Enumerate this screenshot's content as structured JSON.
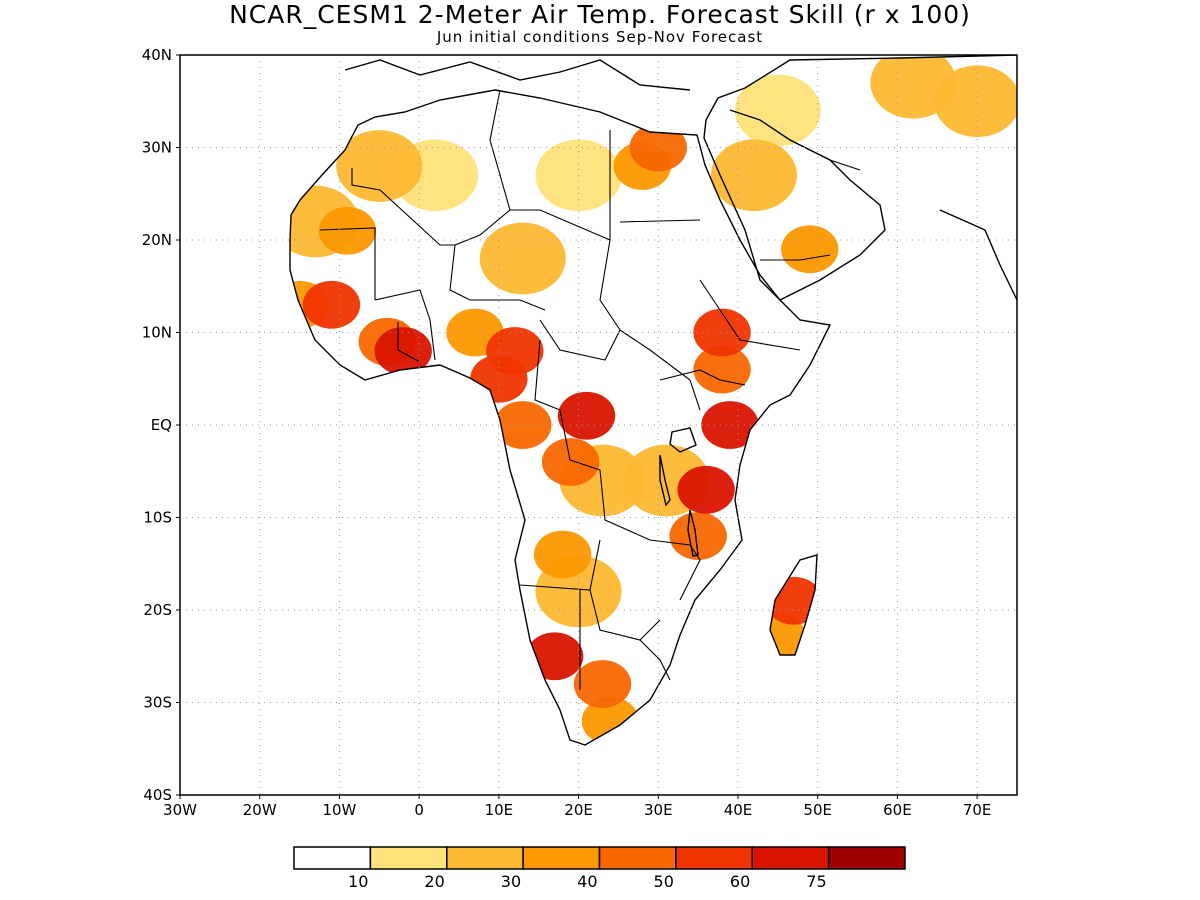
{
  "title": "NCAR_CESM1 2-Meter Air Temp. Forecast Skill (r x 100)",
  "subtitle": "Jun initial conditions  Sep-Nov Forecast",
  "map": {
    "region": "Africa",
    "lon_range": [
      -30,
      75
    ],
    "lat_range": [
      -40,
      40
    ],
    "grid": true,
    "lat_ticks": [
      {
        "value": 40,
        "label": "40N"
      },
      {
        "value": 30,
        "label": "30N"
      },
      {
        "value": 20,
        "label": "20N"
      },
      {
        "value": 10,
        "label": "10N"
      },
      {
        "value": 0,
        "label": "EQ"
      },
      {
        "value": -10,
        "label": "10S"
      },
      {
        "value": -20,
        "label": "20S"
      },
      {
        "value": -30,
        "label": "30S"
      },
      {
        "value": -40,
        "label": "40S"
      }
    ],
    "lon_ticks": [
      {
        "value": -30,
        "label": "30W"
      },
      {
        "value": -20,
        "label": "20W"
      },
      {
        "value": -10,
        "label": "10W"
      },
      {
        "value": 0,
        "label": "0"
      },
      {
        "value": 10,
        "label": "10E"
      },
      {
        "value": 20,
        "label": "20E"
      },
      {
        "value": 30,
        "label": "30E"
      },
      {
        "value": 40,
        "label": "40E"
      },
      {
        "value": 50,
        "label": "50E"
      },
      {
        "value": 60,
        "label": "60E"
      },
      {
        "value": 70,
        "label": "70E"
      }
    ]
  },
  "colorbar": {
    "colors": [
      "#ffffff",
      "#ffe27a",
      "#fdb832",
      "#fc9800",
      "#f86700",
      "#f03400",
      "#d91400",
      "#a00000"
    ],
    "labels": [
      "10",
      "20",
      "30",
      "40",
      "50",
      "60",
      "75"
    ]
  },
  "chart_data": {
    "type": "heatmap",
    "variable": "2-Meter Air Temp. Forecast Skill (r x 100)",
    "levels": [
      10,
      20,
      30,
      40,
      50,
      60,
      75
    ],
    "lon_range": [
      -30,
      75
    ],
    "lat_range": [
      -40,
      40
    ],
    "regions": [
      {
        "lon": -5,
        "lat": 28,
        "value": 20
      },
      {
        "lon": -13,
        "lat": 22,
        "value": 25
      },
      {
        "lon": -9,
        "lat": 21,
        "value": 30
      },
      {
        "lon": 2,
        "lat": 27,
        "value": 15
      },
      {
        "lon": 13,
        "lat": 18,
        "value": 25
      },
      {
        "lon": 20,
        "lat": 27,
        "value": 15
      },
      {
        "lon": 28,
        "lat": 28,
        "value": 30
      },
      {
        "lon": 30,
        "lat": 30,
        "value": 45
      },
      {
        "lon": 42,
        "lat": 27,
        "value": 20
      },
      {
        "lon": 49,
        "lat": 19,
        "value": 30
      },
      {
        "lon": 45,
        "lat": 34,
        "value": 15
      },
      {
        "lon": 62,
        "lat": 37,
        "value": 20
      },
      {
        "lon": 70,
        "lat": 35,
        "value": 25
      },
      {
        "lon": -15,
        "lat": 13,
        "value": 35
      },
      {
        "lon": -11,
        "lat": 13,
        "value": 50
      },
      {
        "lon": -4,
        "lat": 9,
        "value": 45
      },
      {
        "lon": -2,
        "lat": 8,
        "value": 60
      },
      {
        "lon": 7,
        "lat": 10,
        "value": 35
      },
      {
        "lon": 12,
        "lat": 8,
        "value": 50
      },
      {
        "lon": 10,
        "lat": 5,
        "value": 55
      },
      {
        "lon": 13,
        "lat": 0,
        "value": 40
      },
      {
        "lon": 21,
        "lat": 1,
        "value": 70
      },
      {
        "lon": 19,
        "lat": -4,
        "value": 45
      },
      {
        "lon": 23,
        "lat": -6,
        "value": 25
      },
      {
        "lon": 31,
        "lat": -6,
        "value": 25
      },
      {
        "lon": 38,
        "lat": 10,
        "value": 50
      },
      {
        "lon": 38,
        "lat": 6,
        "value": 45
      },
      {
        "lon": 39,
        "lat": 0,
        "value": 70
      },
      {
        "lon": 36,
        "lat": -7,
        "value": 65
      },
      {
        "lon": 35,
        "lat": -12,
        "value": 40
      },
      {
        "lon": 18,
        "lat": -14,
        "value": 30
      },
      {
        "lon": 20,
        "lat": -18,
        "value": 20
      },
      {
        "lon": 17,
        "lat": -25,
        "value": 65
      },
      {
        "lon": 23,
        "lat": -28,
        "value": 40
      },
      {
        "lon": 24,
        "lat": -32,
        "value": 35
      },
      {
        "lon": 47,
        "lat": -19,
        "value": 55
      },
      {
        "lon": 45,
        "lat": -23,
        "value": 35
      }
    ]
  }
}
